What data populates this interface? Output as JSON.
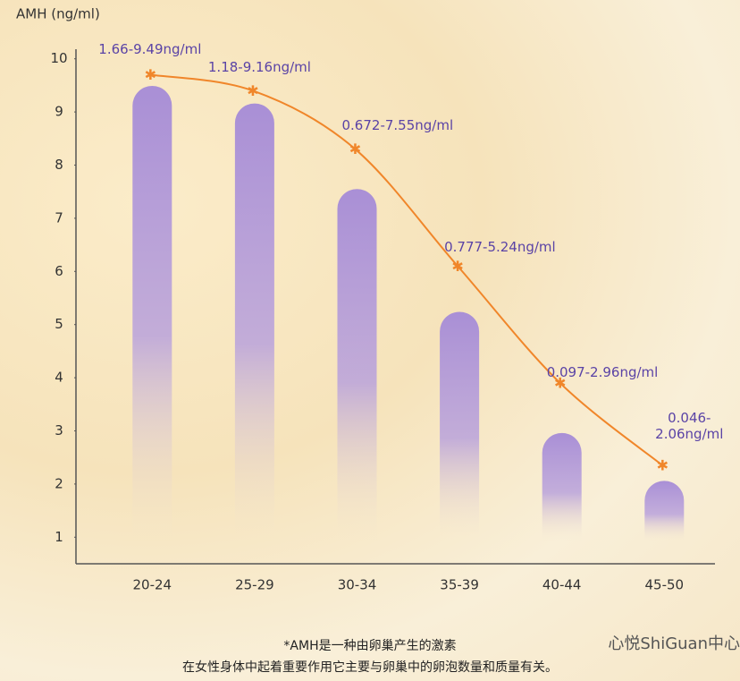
{
  "chart_data": {
    "type": "bar",
    "y_label": "AMH (ng/ml)",
    "categories": [
      "20-24",
      "25-29",
      "30-34",
      "35-39",
      "40-44",
      "45-50"
    ],
    "bars": {
      "color": "#a98fd6",
      "values": [
        9.49,
        9.16,
        7.55,
        5.24,
        2.96,
        2.06
      ]
    },
    "line": {
      "color": "#f0862a",
      "values": [
        9.7,
        9.4,
        8.3,
        6.1,
        3.9,
        2.35
      ]
    },
    "annotations": [
      "1.66-9.49ng/ml",
      "1.18-9.16ng/ml",
      "0.672-7.55ng/ml",
      "0.777-5.24ng/ml",
      "0.097-2.96ng/ml",
      "0.046-2.06ng/ml"
    ],
    "ylim": [
      0.5,
      10.5
    ],
    "yticks": [
      1,
      2,
      3,
      4,
      5,
      6,
      7,
      8,
      9,
      10
    ],
    "footnote": [
      "*AMH是一种由卵巢产生的激素",
      "在女性身体中起着重要作用它主要与卵巢中的卵泡数量和质量有关。"
    ],
    "watermark": "心悦ShiGuan中心"
  }
}
